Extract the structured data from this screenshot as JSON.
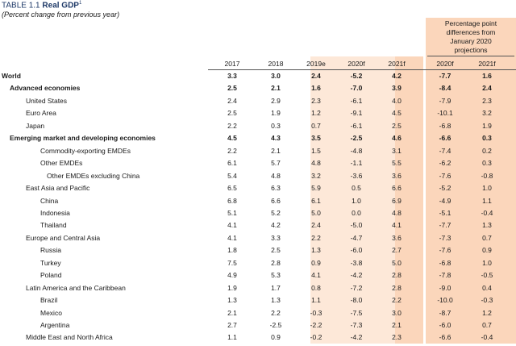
{
  "table": {
    "title_prefix": "TABLE 1.1",
    "title_main": "Real GDP",
    "title_sup": "1",
    "subtitle": "(Percent change from previous year)",
    "pp_header": [
      "Percentage point",
      "differences from",
      "January 2020",
      "projections"
    ],
    "years": [
      "2017",
      "2018",
      "2019e",
      "2020f",
      "2021f"
    ],
    "pp_years": [
      "2020f",
      "2021f"
    ],
    "rows": [
      {
        "label": "World",
        "values": [
          "3.3",
          "3.0",
          "2.4",
          "-5.2",
          "4.2"
        ],
        "pp": [
          "-7.7",
          "1.6"
        ],
        "bold": true,
        "indent": 0
      },
      {
        "label": "Advanced economies",
        "values": [
          "2.5",
          "2.1",
          "1.6",
          "-7.0",
          "3.9"
        ],
        "pp": [
          "-8.4",
          "2.4"
        ],
        "bold": true,
        "indent": 1
      },
      {
        "label": "United States",
        "values": [
          "2.4",
          "2.9",
          "2.3",
          "-6.1",
          "4.0"
        ],
        "pp": [
          "-7.9",
          "2.3"
        ],
        "bold": false,
        "indent": 2
      },
      {
        "label": "Euro Area",
        "values": [
          "2.5",
          "1.9",
          "1.2",
          "-9.1",
          "4.5"
        ],
        "pp": [
          "-10.1",
          "3.2"
        ],
        "bold": false,
        "indent": 2
      },
      {
        "label": "Japan",
        "values": [
          "2.2",
          "0.3",
          "0.7",
          "-6.1",
          "2.5"
        ],
        "pp": [
          "-6.8",
          "1.9"
        ],
        "bold": false,
        "indent": 2
      },
      {
        "label": "Emerging market and developing economies",
        "values": [
          "4.5",
          "4.3",
          "3.5",
          "-2.5",
          "4.6"
        ],
        "pp": [
          "-6.6",
          "0.3"
        ],
        "bold": true,
        "indent": 1
      },
      {
        "label": "Commodity-exporting EMDEs",
        "values": [
          "2.2",
          "2.1",
          "1.5",
          "-4.8",
          "3.1"
        ],
        "pp": [
          "-7.4",
          "0.2"
        ],
        "bold": false,
        "indent": 3
      },
      {
        "label": "Other EMDEs",
        "values": [
          "6.1",
          "5.7",
          "4.8",
          "-1.1",
          "5.5"
        ],
        "pp": [
          "-6.2",
          "0.3"
        ],
        "bold": false,
        "indent": 3
      },
      {
        "label": "Other EMDEs excluding China",
        "values": [
          "5.4",
          "4.8",
          "3.2",
          "-3.6",
          "3.6"
        ],
        "pp": [
          "-7.6",
          "-0.8"
        ],
        "bold": false,
        "indent": 4
      },
      {
        "label": "East Asia and Pacific",
        "values": [
          "6.5",
          "6.3",
          "5.9",
          "0.5",
          "6.6"
        ],
        "pp": [
          "-5.2",
          "1.0"
        ],
        "bold": false,
        "indent": 2
      },
      {
        "label": "China",
        "values": [
          "6.8",
          "6.6",
          "6.1",
          "1.0",
          "6.9"
        ],
        "pp": [
          "-4.9",
          "1.1"
        ],
        "bold": false,
        "indent": 3
      },
      {
        "label": "Indonesia",
        "values": [
          "5.1",
          "5.2",
          "5.0",
          "0.0",
          "4.8"
        ],
        "pp": [
          "-5.1",
          "-0.4"
        ],
        "bold": false,
        "indent": 3
      },
      {
        "label": "Thailand",
        "values": [
          "4.1",
          "4.2",
          "2.4",
          "-5.0",
          "4.1"
        ],
        "pp": [
          "-7.7",
          "1.3"
        ],
        "bold": false,
        "indent": 3
      },
      {
        "label": "Europe and Central Asia",
        "values": [
          "4.1",
          "3.3",
          "2.2",
          "-4.7",
          "3.6"
        ],
        "pp": [
          "-7.3",
          "0.7"
        ],
        "bold": false,
        "indent": 2
      },
      {
        "label": "Russia",
        "values": [
          "1.8",
          "2.5",
          "1.3",
          "-6.0",
          "2.7"
        ],
        "pp": [
          "-7.6",
          "0.9"
        ],
        "bold": false,
        "indent": 3
      },
      {
        "label": "Turkey",
        "values": [
          "7.5",
          "2.8",
          "0.9",
          "-3.8",
          "5.0"
        ],
        "pp": [
          "-6.8",
          "1.0"
        ],
        "bold": false,
        "indent": 3
      },
      {
        "label": "Poland",
        "values": [
          "4.9",
          "5.3",
          "4.1",
          "-4.2",
          "2.8"
        ],
        "pp": [
          "-7.8",
          "-0.5"
        ],
        "bold": false,
        "indent": 3
      },
      {
        "label": "Latin America and the Caribbean",
        "values": [
          "1.9",
          "1.7",
          "0.8",
          "-7.2",
          "2.8"
        ],
        "pp": [
          "-9.0",
          "0.4"
        ],
        "bold": false,
        "indent": 2
      },
      {
        "label": "Brazil",
        "values": [
          "1.3",
          "1.3",
          "1.1",
          "-8.0",
          "2.2"
        ],
        "pp": [
          "-10.0",
          "-0.3"
        ],
        "bold": false,
        "indent": 3
      },
      {
        "label": "Mexico",
        "values": [
          "2.1",
          "2.2",
          "-0.3",
          "-7.5",
          "3.0"
        ],
        "pp": [
          "-8.7",
          "1.2"
        ],
        "bold": false,
        "indent": 3
      },
      {
        "label": "Argentina",
        "values": [
          "2.7",
          "-2.5",
          "-2.2",
          "-7.3",
          "2.1"
        ],
        "pp": [
          "-6.0",
          "0.7"
        ],
        "bold": false,
        "indent": 3
      },
      {
        "label": "Middle East and North Africa",
        "values": [
          "1.1",
          "0.9",
          "-0.2",
          "-4.2",
          "2.3"
        ],
        "pp": [
          "-6.6",
          "-0.4"
        ],
        "bold": false,
        "indent": 2
      }
    ]
  }
}
